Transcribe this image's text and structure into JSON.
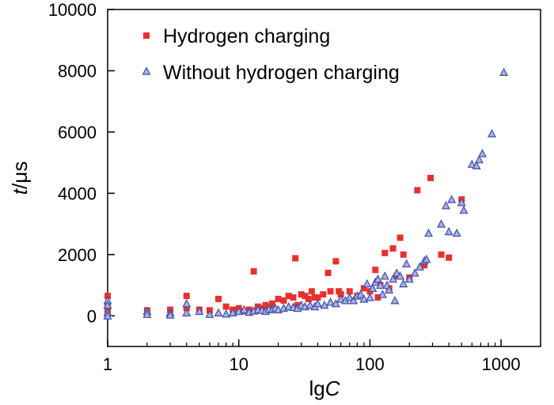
{
  "chart_data": {
    "type": "scatter",
    "x_scale": "log",
    "xlim": [
      1,
      2000
    ],
    "ylim": [
      -1000,
      10000
    ],
    "x_ticks": [
      1,
      10,
      100,
      1000
    ],
    "x_tick_labels": [
      "1",
      "10",
      "100",
      "1000"
    ],
    "y_ticks": [
      0,
      2000,
      4000,
      6000,
      8000,
      10000
    ],
    "y_tick_labels": [
      "0",
      "2000",
      "4000",
      "6000",
      "8000",
      "10000"
    ],
    "xlabel": {
      "prefix": "lg",
      "italic": "C"
    },
    "ylabel": {
      "italic": "t",
      "suffix": "/μs"
    },
    "legend_position": "top-left",
    "series": [
      {
        "name": "Hydrogen charging",
        "marker": "square",
        "color": "#e8312f",
        "points": [
          [
            1,
            650
          ],
          [
            1,
            300
          ],
          [
            1,
            150
          ],
          [
            2,
            180
          ],
          [
            3,
            200
          ],
          [
            4,
            650
          ],
          [
            4,
            250
          ],
          [
            5,
            200
          ],
          [
            6,
            180
          ],
          [
            7,
            550
          ],
          [
            8,
            300
          ],
          [
            9,
            200
          ],
          [
            10,
            250
          ],
          [
            11,
            150
          ],
          [
            12,
            200
          ],
          [
            13,
            1450
          ],
          [
            14,
            300
          ],
          [
            15,
            250
          ],
          [
            16,
            350
          ],
          [
            17,
            280
          ],
          [
            18,
            400
          ],
          [
            20,
            550
          ],
          [
            22,
            500
          ],
          [
            24,
            650
          ],
          [
            26,
            600
          ],
          [
            27,
            1880
          ],
          [
            28,
            350
          ],
          [
            30,
            700
          ],
          [
            32,
            650
          ],
          [
            34,
            550
          ],
          [
            36,
            800
          ],
          [
            38,
            600
          ],
          [
            40,
            600
          ],
          [
            44,
            700
          ],
          [
            48,
            1400
          ],
          [
            50,
            800
          ],
          [
            55,
            1780
          ],
          [
            58,
            800
          ],
          [
            60,
            700
          ],
          [
            70,
            800
          ],
          [
            80,
            650
          ],
          [
            90,
            900
          ],
          [
            100,
            800
          ],
          [
            110,
            1500
          ],
          [
            115,
            600
          ],
          [
            120,
            1000
          ],
          [
            130,
            2050
          ],
          [
            140,
            900
          ],
          [
            150,
            2200
          ],
          [
            160,
            1300
          ],
          [
            170,
            2550
          ],
          [
            180,
            2000
          ],
          [
            200,
            1250
          ],
          [
            230,
            4100
          ],
          [
            260,
            1650
          ],
          [
            290,
            4500
          ],
          [
            350,
            2000
          ],
          [
            400,
            1900
          ],
          [
            500,
            3800
          ]
        ]
      },
      {
        "name": "Without hydrogen charging",
        "marker": "triangle",
        "color": "#3f4fa8",
        "points": [
          [
            1,
            500
          ],
          [
            1,
            350
          ],
          [
            1,
            100
          ],
          [
            1,
            0
          ],
          [
            2,
            150
          ],
          [
            2,
            50
          ],
          [
            3,
            100
          ],
          [
            3,
            30
          ],
          [
            4,
            400
          ],
          [
            4,
            100
          ],
          [
            5,
            150
          ],
          [
            6,
            50
          ],
          [
            7,
            100
          ],
          [
            8,
            60
          ],
          [
            9,
            100
          ],
          [
            10,
            150
          ],
          [
            11,
            200
          ],
          [
            12,
            120
          ],
          [
            13,
            160
          ],
          [
            14,
            200
          ],
          [
            15,
            180
          ],
          [
            16,
            150
          ],
          [
            17,
            220
          ],
          [
            18,
            200
          ],
          [
            19,
            250
          ],
          [
            20,
            200
          ],
          [
            22,
            250
          ],
          [
            24,
            300
          ],
          [
            26,
            280
          ],
          [
            28,
            250
          ],
          [
            30,
            350
          ],
          [
            32,
            300
          ],
          [
            35,
            350
          ],
          [
            38,
            300
          ],
          [
            40,
            400
          ],
          [
            45,
            350
          ],
          [
            50,
            450
          ],
          [
            55,
            400
          ],
          [
            60,
            550
          ],
          [
            65,
            500
          ],
          [
            70,
            600
          ],
          [
            75,
            500
          ],
          [
            80,
            650
          ],
          [
            85,
            700
          ],
          [
            90,
            550
          ],
          [
            95,
            1050
          ],
          [
            100,
            600
          ],
          [
            105,
            900
          ],
          [
            110,
            1100
          ],
          [
            115,
            1200
          ],
          [
            120,
            1000
          ],
          [
            125,
            700
          ],
          [
            130,
            1300
          ],
          [
            135,
            1000
          ],
          [
            140,
            850
          ],
          [
            150,
            1200
          ],
          [
            155,
            500
          ],
          [
            160,
            1400
          ],
          [
            170,
            1300
          ],
          [
            180,
            1050
          ],
          [
            190,
            1700
          ],
          [
            200,
            1200
          ],
          [
            220,
            1400
          ],
          [
            240,
            1600
          ],
          [
            260,
            1800
          ],
          [
            270,
            1850
          ],
          [
            280,
            2700
          ],
          [
            350,
            3000
          ],
          [
            380,
            3600
          ],
          [
            400,
            2750
          ],
          [
            420,
            3800
          ],
          [
            460,
            2700
          ],
          [
            500,
            3700
          ],
          [
            520,
            3450
          ],
          [
            600,
            4950
          ],
          [
            650,
            4900
          ],
          [
            680,
            5100
          ],
          [
            720,
            5300
          ],
          [
            850,
            5950
          ],
          [
            1050,
            7950
          ]
        ]
      }
    ]
  }
}
